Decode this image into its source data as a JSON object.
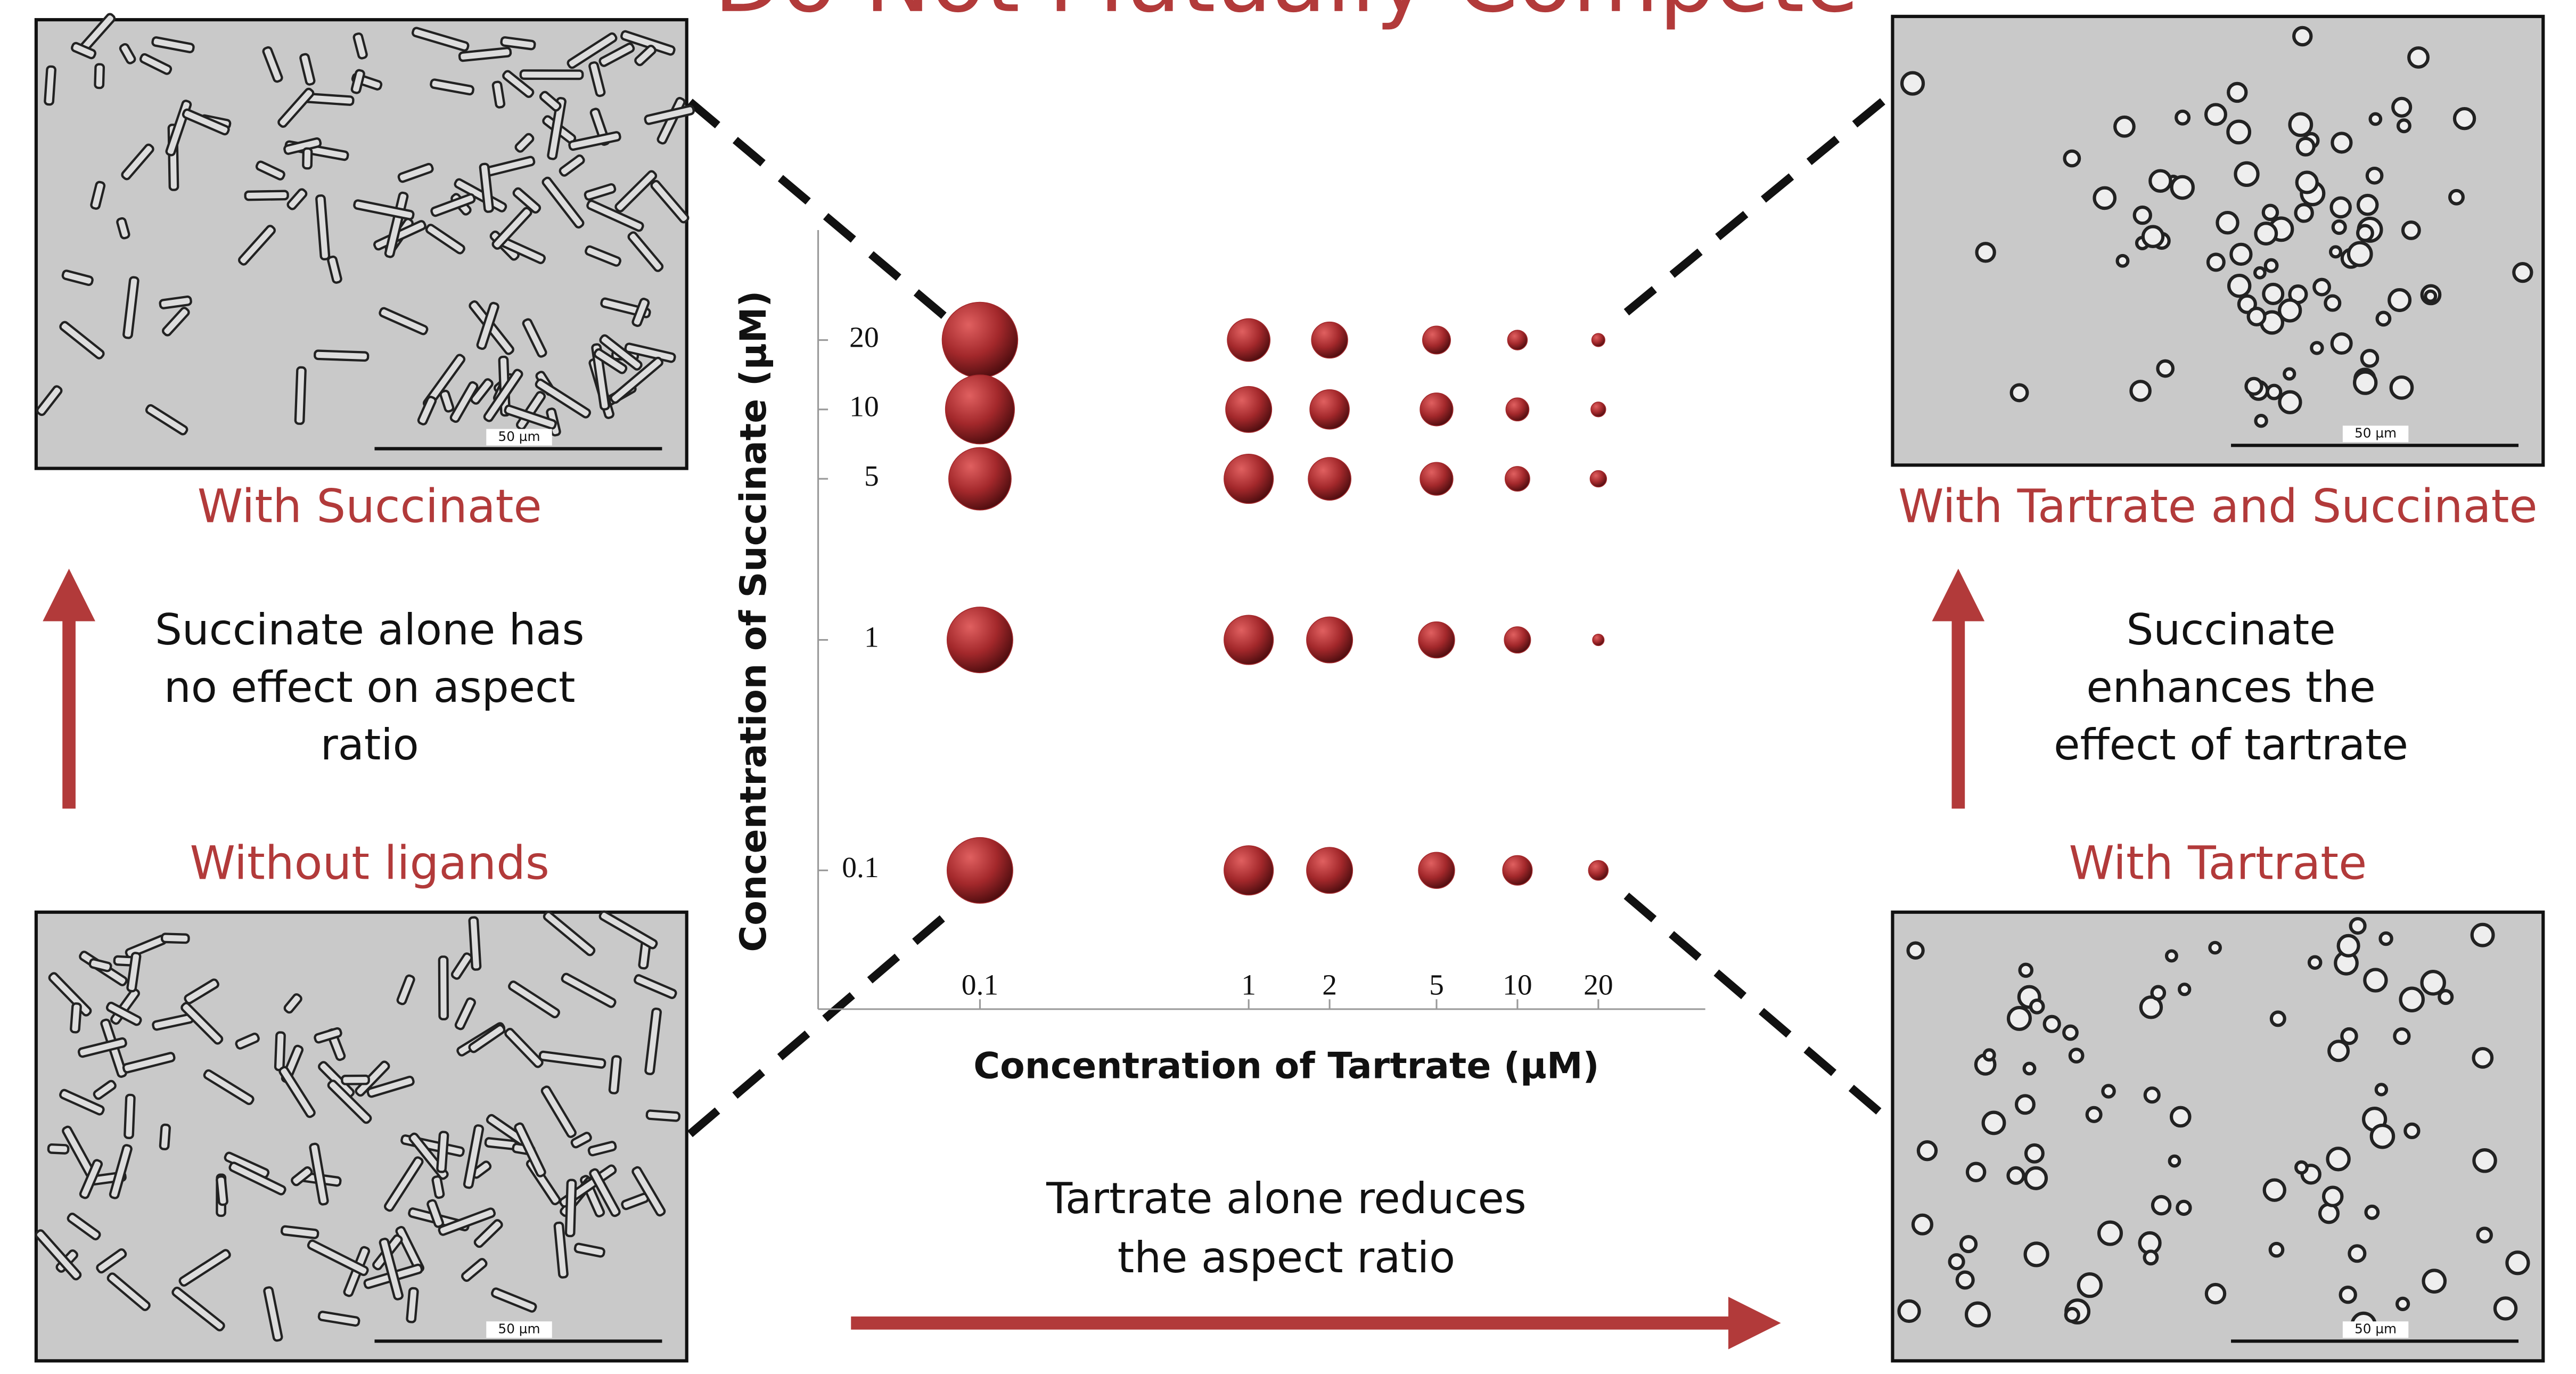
{
  "slide": {
    "title": "Do Not Mutually Compete",
    "panels": [
      {
        "caption": "With Succinate",
        "scale": "50 µm"
      },
      {
        "caption": "Without ligands",
        "scale": "50 µm"
      },
      {
        "caption": "With Tartrate and Succinate",
        "scale": "50 µm"
      },
      {
        "caption": "With Tartrate",
        "scale": "50 µm"
      }
    ],
    "notes": {
      "succinate_alone": [
        "Succinate alone has",
        "no effect on aspect",
        "ratio"
      ],
      "succinate_enhances": [
        "Succinate",
        "enhances the",
        "effect of tartrate"
      ],
      "tartrate_alone": [
        "Tartrate alone reduces",
        "the aspect ratio"
      ]
    }
  },
  "chart_data": {
    "type": "bubble",
    "xlabel": "Concentration of Tartrate (µM)",
    "ylabel": "Concentration of Succinate (µM)",
    "xscale": "log",
    "yscale": "log",
    "xlim": [
      0.025,
      50
    ],
    "ylim": [
      0.025,
      60
    ],
    "xticks": [
      0.1,
      1,
      2,
      5,
      10,
      20
    ],
    "yticks": [
      0.1,
      1,
      5,
      10,
      20
    ],
    "color": "#a3282b",
    "x": [
      0.1,
      1,
      2,
      5,
      10,
      20,
      0.1,
      1,
      2,
      5,
      10,
      20,
      0.1,
      1,
      2,
      5,
      10,
      20,
      0.1,
      1,
      2,
      5,
      10,
      20,
      0.1,
      1,
      2,
      5,
      10,
      20
    ],
    "y": [
      20,
      20,
      20,
      20,
      20,
      20,
      10,
      10,
      10,
      10,
      10,
      10,
      5,
      5,
      5,
      5,
      5,
      5,
      1,
      1,
      1,
      1,
      1,
      1,
      0.1,
      0.1,
      0.1,
      0.1,
      0.1,
      0.1
    ],
    "sizes": [
      46,
      26,
      22,
      17,
      12,
      8,
      42,
      28,
      24,
      20,
      14,
      9,
      38,
      30,
      26,
      20,
      15,
      10,
      40,
      30,
      28,
      22,
      16,
      7,
      40,
      30,
      28,
      22,
      18,
      12
    ]
  }
}
